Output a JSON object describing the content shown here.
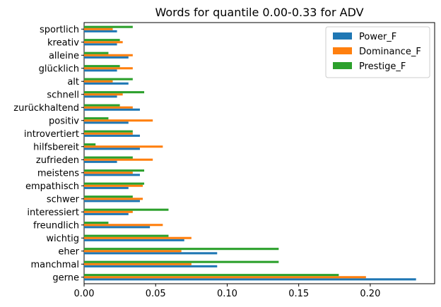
{
  "chart_data": {
    "type": "bar",
    "orientation": "horizontal",
    "title": "Words for quantile 0.00-0.33 for ADV",
    "xlabel": "",
    "ylabel": "",
    "xlim": [
      0,
      0.245
    ],
    "xticks": [
      0.0,
      0.05,
      0.1,
      0.15,
      0.2
    ],
    "xtick_labels": [
      "0.00",
      "0.05",
      "0.10",
      "0.15",
      "0.20"
    ],
    "categories": [
      "gerne",
      "manchmal",
      "eher",
      "wichtig",
      "freundlich",
      "interessiert",
      "schwer",
      "empathisch",
      "meistens",
      "zufrieden",
      "hilfsbereit",
      "introvertiert",
      "positiv",
      "zurückhaltend",
      "schnell",
      "alt",
      "glücklich",
      "alleine",
      "kreativ",
      "sportlich"
    ],
    "series": [
      {
        "name": "Power_F",
        "color": "#1f77b4",
        "values": [
          0.232,
          0.093,
          0.093,
          0.07,
          0.046,
          0.031,
          0.039,
          0.031,
          0.039,
          0.023,
          0.039,
          0.039,
          0.031,
          0.039,
          0.023,
          0.031,
          0.023,
          0.031,
          0.023,
          0.023
        ]
      },
      {
        "name": "Dominance_F",
        "color": "#ff7f0e",
        "values": [
          0.197,
          0.075,
          0.068,
          0.075,
          0.055,
          0.034,
          0.041,
          0.041,
          0.034,
          0.048,
          0.055,
          0.034,
          0.048,
          0.034,
          0.027,
          0.02,
          0.034,
          0.034,
          0.027,
          0.02
        ]
      },
      {
        "name": "Prestige_F",
        "color": "#2ca02c",
        "values": [
          0.178,
          0.136,
          0.136,
          0.059,
          0.017,
          0.059,
          0.034,
          0.042,
          0.042,
          0.034,
          0.008,
          0.034,
          0.017,
          0.025,
          0.042,
          0.034,
          0.025,
          0.017,
          0.025,
          0.034
        ]
      }
    ],
    "grid": false,
    "legend_position": "top-right"
  }
}
